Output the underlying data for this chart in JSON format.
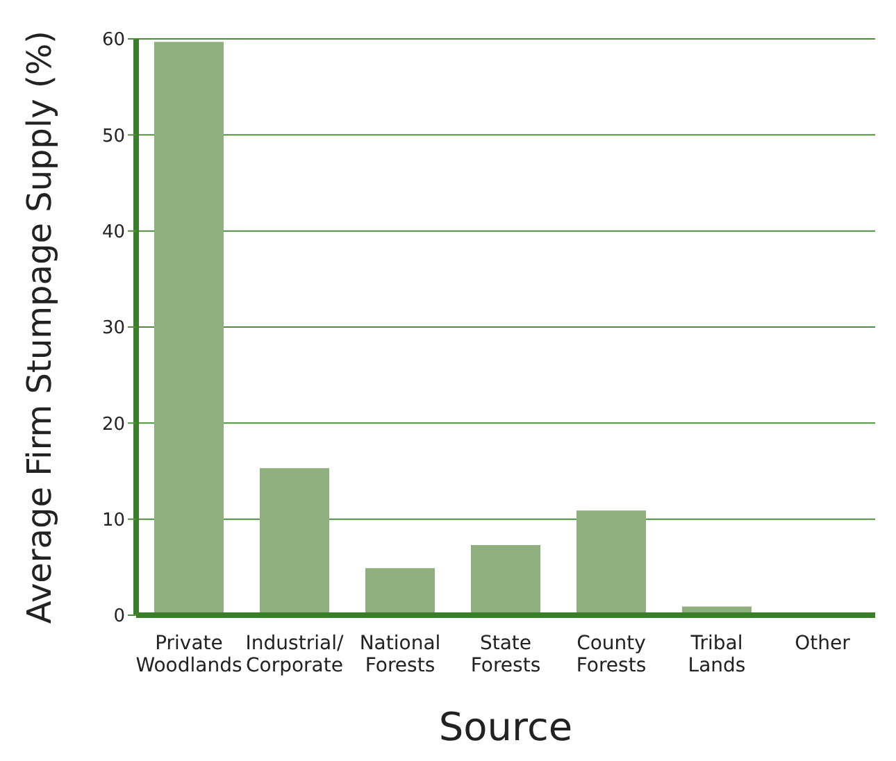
{
  "chart_data": {
    "type": "bar",
    "xlabel": "Source",
    "ylabel": "Average Firm Stumpage Supply (%)",
    "categories": [
      "Private\nWoodlands",
      "Industrial/\nCorporate",
      "National\nForests",
      "State\nForests",
      "County\nForests",
      "Tribal\nLands",
      "Other"
    ],
    "values": [
      59.7,
      15.3,
      4.9,
      7.3,
      10.9,
      0.9,
      0
    ],
    "color": "#8fb07e",
    "ylim": [
      0,
      60
    ],
    "yticks": [
      0,
      10,
      20,
      30,
      40,
      50,
      60
    ],
    "grid": "y"
  }
}
